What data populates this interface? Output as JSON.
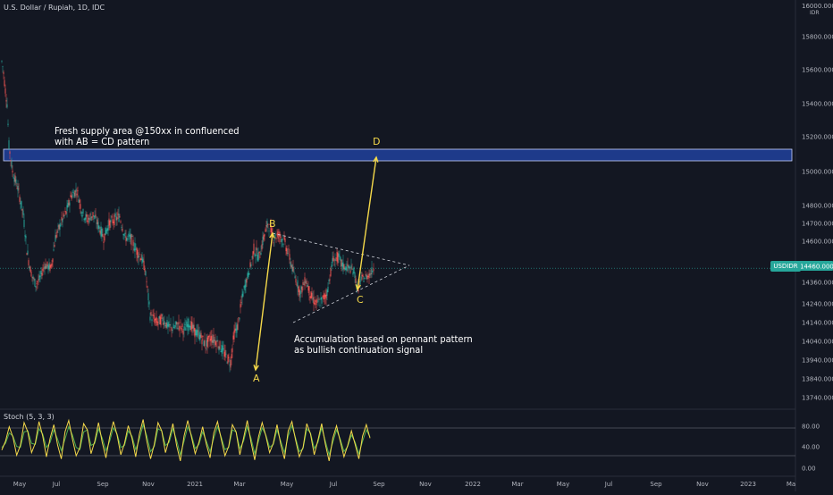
{
  "title": "U.S. Dollar / Rupiah, 1D, IDC",
  "currency_badge": "IDR",
  "price_badge": {
    "symbol": "USDIDR",
    "value": "14460.0000"
  },
  "annotations": {
    "supply": "Fresh supply area @150xx in confluenced\nwith AB = CD pattern",
    "accumulation": "Accumulation based on pennant pattern\nas bullish continuation signal",
    "point_a": "A",
    "point_b": "B",
    "point_c": "C",
    "point_d": "D"
  },
  "stoch": {
    "title": "Stoch (5, 3, 3)",
    "ticks": [
      "80.00",
      "40.00",
      "0.00"
    ]
  },
  "colors": {
    "background": "#131722",
    "up": "#26a69a",
    "down": "#ef5350",
    "zone_fill": "#1e3a8a",
    "annotation": "#f5d94a",
    "stoch_k": "#f5d94a",
    "stoch_d": "#4caf50"
  },
  "chart_data": {
    "type": "candlestick",
    "y_ticks": [
      "16000.0000",
      "15800.0000",
      "15600.0000",
      "15400.0000",
      "15200.0000",
      "15000.0000",
      "14800.0000",
      "14700.0000",
      "14600.0000",
      "14480.0000",
      "14360.0000",
      "14240.0000",
      "14140.0000",
      "14040.0000",
      "13940.0000",
      "13840.0000",
      "13740.0000"
    ],
    "x_ticks": [
      "May",
      "Jul",
      "Sep",
      "Nov",
      "2021",
      "Mar",
      "May",
      "Jul",
      "Sep",
      "Nov",
      "2022",
      "Mar",
      "May",
      "Jul",
      "Sep",
      "Nov",
      "2023",
      "Ma"
    ],
    "price_path": [
      [
        0,
        15650
      ],
      [
        1,
        15620
      ],
      [
        2,
        15580
      ],
      [
        4,
        15480
      ],
      [
        6,
        15400
      ],
      [
        8,
        15150
      ],
      [
        12,
        15000
      ],
      [
        18,
        14900
      ],
      [
        24,
        14750
      ],
      [
        28,
        14560
      ],
      [
        34,
        14400
      ],
      [
        38,
        14350
      ],
      [
        42,
        14380
      ],
      [
        48,
        14480
      ],
      [
        55,
        14460
      ],
      [
        60,
        14620
      ],
      [
        66,
        14700
      ],
      [
        72,
        14760
      ],
      [
        78,
        14860
      ],
      [
        84,
        14890
      ],
      [
        90,
        14760
      ],
      [
        96,
        14720
      ],
      [
        102,
        14750
      ],
      [
        108,
        14690
      ],
      [
        114,
        14620
      ],
      [
        120,
        14700
      ],
      [
        126,
        14720
      ],
      [
        132,
        14740
      ],
      [
        138,
        14620
      ],
      [
        144,
        14620
      ],
      [
        150,
        14560
      ],
      [
        156,
        14520
      ],
      [
        160,
        14460
      ],
      [
        166,
        14180
      ],
      [
        174,
        14140
      ],
      [
        180,
        14160
      ],
      [
        186,
        14120
      ],
      [
        192,
        14110
      ],
      [
        198,
        14130
      ],
      [
        204,
        14100
      ],
      [
        210,
        14140
      ],
      [
        216,
        14090
      ],
      [
        222,
        14070
      ],
      [
        228,
        14020
      ],
      [
        234,
        14060
      ],
      [
        240,
        14040
      ],
      [
        246,
        14000
      ],
      [
        252,
        13950
      ],
      [
        256,
        13930
      ],
      [
        260,
        14080
      ],
      [
        264,
        14120
      ],
      [
        270,
        14300
      ],
      [
        276,
        14420
      ],
      [
        282,
        14560
      ],
      [
        288,
        14520
      ],
      [
        294,
        14640
      ],
      [
        298,
        14700
      ],
      [
        304,
        14620
      ],
      [
        310,
        14640
      ],
      [
        316,
        14600
      ],
      [
        322,
        14520
      ],
      [
        328,
        14400
      ],
      [
        334,
        14300
      ],
      [
        340,
        14380
      ],
      [
        346,
        14280
      ],
      [
        352,
        14240
      ],
      [
        358,
        14260
      ],
      [
        364,
        14300
      ],
      [
        370,
        14500
      ],
      [
        376,
        14520
      ],
      [
        382,
        14470
      ],
      [
        388,
        14460
      ],
      [
        394,
        14440
      ],
      [
        398,
        14320
      ],
      [
        402,
        14380
      ],
      [
        408,
        14400
      ],
      [
        412,
        14420
      ],
      [
        416,
        14460
      ]
    ],
    "stoch_k": [
      35,
      52,
      80,
      60,
      25,
      44,
      88,
      70,
      30,
      48,
      90,
      62,
      22,
      58,
      84,
      45,
      18,
      70,
      92,
      56,
      24,
      40,
      86,
      74,
      28,
      52,
      88,
      50,
      20,
      60,
      90,
      64,
      26,
      48,
      82,
      58,
      22,
      66,
      94,
      52,
      18,
      46,
      88,
      72,
      30,
      56,
      86,
      44,
      14,
      62,
      92,
      60,
      28,
      50,
      80,
      46,
      20,
      68,
      90,
      56,
      24,
      42,
      84,
      70,
      26,
      58,
      92,
      50,
      16,
      60,
      88,
      62,
      30,
      48,
      84,
      46,
      18,
      72,
      90,
      54,
      22,
      40,
      86,
      66,
      26,
      54,
      86,
      46,
      14,
      58,
      82,
      52,
      22,
      44,
      72,
      46,
      18,
      62,
      84,
      58
    ],
    "stoch_d": [
      40,
      48,
      68,
      62,
      42,
      40,
      70,
      72,
      48,
      46,
      76,
      66,
      40,
      50,
      74,
      56,
      34,
      56,
      80,
      64,
      40,
      36,
      70,
      74,
      44,
      48,
      76,
      58,
      34,
      52,
      78,
      66,
      40,
      44,
      72,
      62,
      36,
      56,
      84,
      62,
      32,
      42,
      76,
      72,
      44,
      50,
      76,
      54,
      26,
      52,
      80,
      64,
      38,
      46,
      70,
      52,
      32,
      58,
      80,
      60,
      36,
      40,
      74,
      70,
      38,
      52,
      80,
      58,
      28,
      52,
      78,
      64,
      40,
      46,
      74,
      52,
      30,
      62,
      82,
      58,
      32,
      38,
      76,
      68,
      38,
      50,
      78,
      52,
      26,
      50,
      74,
      56,
      32,
      42,
      64,
      50,
      28,
      52,
      74,
      60
    ]
  }
}
